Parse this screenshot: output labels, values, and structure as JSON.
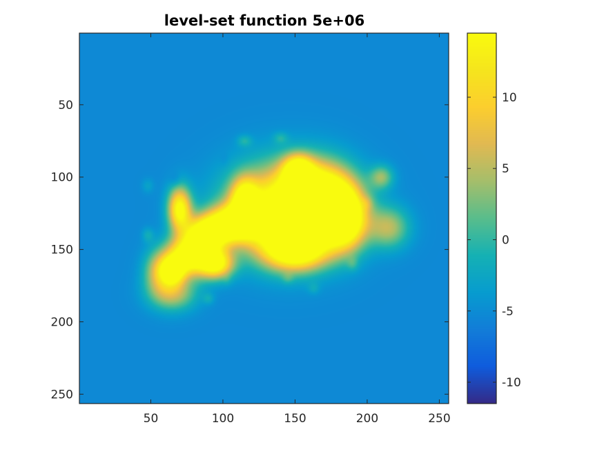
{
  "chart_data": {
    "type": "heatmap",
    "title": "level-set function 5e+06",
    "xlabel": "",
    "ylabel": "",
    "xlim": [
      1,
      256
    ],
    "ylim": [
      1,
      256
    ],
    "y_direction": "reversed",
    "x_ticks": [
      50,
      100,
      150,
      200,
      250
    ],
    "y_ticks": [
      50,
      100,
      150,
      200,
      250
    ],
    "colorbar": {
      "colormap": "parula",
      "range": [
        -11.5,
        14.5
      ],
      "ticks": [
        -10,
        -5,
        0,
        5,
        10
      ]
    },
    "field": {
      "background_value": -5.3,
      "description_of_shapes": "elliptical bumps summed on a constant background",
      "bumps": [
        {
          "x": 145,
          "y": 123,
          "rx": 38,
          "ry": 30,
          "value": 20.0
        },
        {
          "x": 168,
          "y": 115,
          "rx": 22,
          "ry": 22,
          "value": 17.5
        },
        {
          "x": 185,
          "y": 130,
          "rx": 14,
          "ry": 20,
          "value": 15.0
        },
        {
          "x": 152,
          "y": 95,
          "rx": 10,
          "ry": 10,
          "value": 12.0
        },
        {
          "x": 150,
          "y": 150,
          "rx": 22,
          "ry": 14,
          "value": 16.0
        },
        {
          "x": 115,
          "y": 115,
          "rx": 9,
          "ry": 14,
          "value": 10.5
        },
        {
          "x": 108,
          "y": 132,
          "rx": 18,
          "ry": 12,
          "value": 17.0
        },
        {
          "x": 88,
          "y": 140,
          "rx": 14,
          "ry": 12,
          "value": 17.5
        },
        {
          "x": 70,
          "y": 122,
          "rx": 8,
          "ry": 15,
          "value": 15.0
        },
        {
          "x": 75,
          "y": 155,
          "rx": 15,
          "ry": 13,
          "value": 17.0
        },
        {
          "x": 95,
          "y": 160,
          "rx": 12,
          "ry": 10,
          "value": 15.0
        },
        {
          "x": 65,
          "y": 165,
          "rx": 8,
          "ry": 9,
          "value": 12.0
        },
        {
          "x": 125,
          "y": 120,
          "rx": 6,
          "ry": 6,
          "value": -6.0
        },
        {
          "x": 215,
          "y": 135,
          "rx": 14,
          "ry": 14,
          "value": 4.5
        },
        {
          "x": 210,
          "y": 100,
          "rx": 8,
          "ry": 8,
          "value": 3.0
        },
        {
          "x": 65,
          "y": 180,
          "rx": 16,
          "ry": 12,
          "value": 6.0
        },
        {
          "x": 55,
          "y": 165,
          "rx": 10,
          "ry": 14,
          "value": 4.5
        },
        {
          "x": 67,
          "y": 102,
          "rx": 4,
          "ry": 5,
          "value": -7.0
        },
        {
          "x": 48,
          "y": 106,
          "rx": 4,
          "ry": 5,
          "value": -3.0
        },
        {
          "x": 101,
          "y": 88,
          "rx": 3,
          "ry": 5,
          "value": -6.0
        },
        {
          "x": 103,
          "y": 171,
          "rx": 3,
          "ry": 4,
          "value": -4.0
        },
        {
          "x": 90,
          "y": 184,
          "rx": 4,
          "ry": 4,
          "value": -2.5
        },
        {
          "x": 145,
          "y": 170,
          "rx": 4,
          "ry": 4,
          "value": -3.0
        },
        {
          "x": 163,
          "y": 177,
          "rx": 4,
          "ry": 4,
          "value": -3.0
        },
        {
          "x": 190,
          "y": 160,
          "rx": 4,
          "ry": 5,
          "value": -2.5
        },
        {
          "x": 200,
          "y": 118,
          "rx": 4,
          "ry": 5,
          "value": -2.5
        },
        {
          "x": 140,
          "y": 73,
          "rx": 5,
          "ry": 4,
          "value": -2.0
        },
        {
          "x": 115,
          "y": 75,
          "rx": 5,
          "ry": 4,
          "value": -1.5
        },
        {
          "x": 48,
          "y": 140,
          "rx": 4,
          "ry": 5,
          "value": -2.0
        }
      ]
    }
  }
}
